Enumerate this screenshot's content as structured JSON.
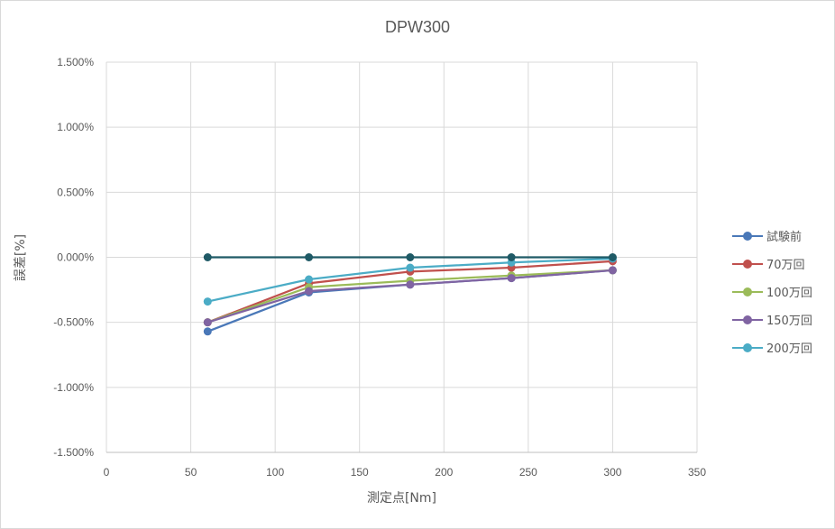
{
  "chart_data": {
    "type": "line",
    "title": "DPW300",
    "xlabel": "測定点[Nm]",
    "ylabel": "誤差[%]",
    "xlim": [
      0,
      350
    ],
    "ylim": [
      -1.5,
      1.5
    ],
    "x_ticks": [
      "0",
      "50",
      "100",
      "150",
      "200",
      "250",
      "300",
      "350"
    ],
    "y_ticks": [
      "1.500%",
      "1.000%",
      "0.500%",
      "0.000%",
      "-0.500%",
      "-1.000%",
      "-1.500%"
    ],
    "grid": true,
    "legend_position": "right",
    "x": [
      60,
      120,
      180,
      240,
      300
    ],
    "series": [
      {
        "name": "試験前",
        "color": "#4a78b8",
        "values": [
          -0.57,
          -0.27,
          -0.21,
          -0.16,
          -0.1
        ]
      },
      {
        "name": "70万回",
        "color": "#c0504d",
        "values": [
          -0.5,
          -0.2,
          -0.11,
          -0.08,
          -0.03
        ]
      },
      {
        "name": "100万回",
        "color": "#9bbb59",
        "values": [
          -0.5,
          -0.23,
          -0.18,
          -0.14,
          -0.1
        ]
      },
      {
        "name": "150万回",
        "color": "#8064a2",
        "values": [
          -0.5,
          -0.26,
          -0.21,
          -0.16,
          -0.1
        ]
      },
      {
        "name": "200万回",
        "color": "#4bacc6",
        "values": [
          -0.34,
          -0.17,
          -0.08,
          -0.04,
          -0.01
        ]
      }
    ],
    "reference_series": {
      "color": "#1f5a66",
      "values": [
        0,
        0,
        0,
        0,
        0
      ]
    }
  }
}
